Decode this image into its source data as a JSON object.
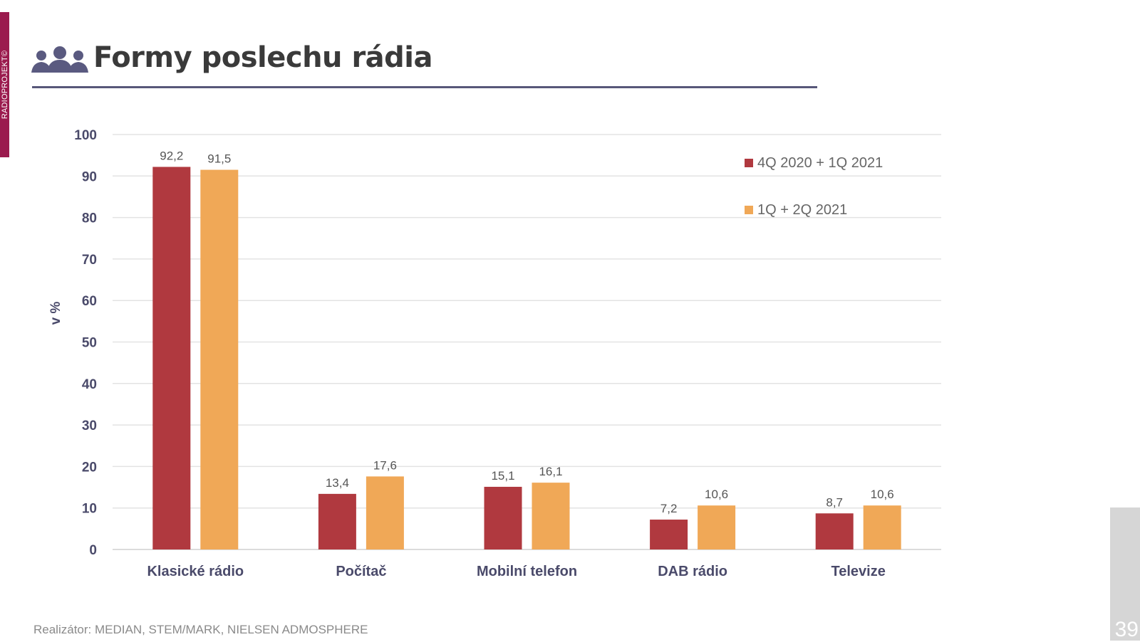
{
  "sidebar_label": "RADIOPROJEKT©",
  "header": {
    "title": "Formy poslechu rádia",
    "icon": "people-group-icon"
  },
  "footer": {
    "source": "Realizátor: MEDIAN, STEM/MARK, NIELSEN ADMOSPHERE",
    "page_number": "39"
  },
  "colors": {
    "series1": "#b0393f",
    "series2": "#f0a857",
    "accent": "#575779",
    "side_tab": "#9b1b4e"
  },
  "chart_data": {
    "type": "bar",
    "title": "",
    "xlabel": "",
    "ylabel": "v %",
    "ylim": [
      0,
      100
    ],
    "yticks": [
      0,
      10,
      20,
      30,
      40,
      50,
      60,
      70,
      80,
      90,
      100
    ],
    "grid": true,
    "legend_position": "top-right",
    "categories": [
      "Klasické rádio",
      "Počítač",
      "Mobilní telefon",
      "DAB rádio",
      "Televize"
    ],
    "series": [
      {
        "name": "4Q 2020 + 1Q 2021",
        "values": [
          92.2,
          13.4,
          15.1,
          7.2,
          8.7
        ],
        "labels": [
          "92,2",
          "13,4",
          "15,1",
          "7,2",
          "8,7"
        ]
      },
      {
        "name": "1Q + 2Q 2021",
        "values": [
          91.5,
          17.6,
          16.1,
          10.6,
          10.6
        ],
        "labels": [
          "91,5",
          "17,6",
          "16,1",
          "10,6",
          "10,6"
        ]
      }
    ]
  }
}
